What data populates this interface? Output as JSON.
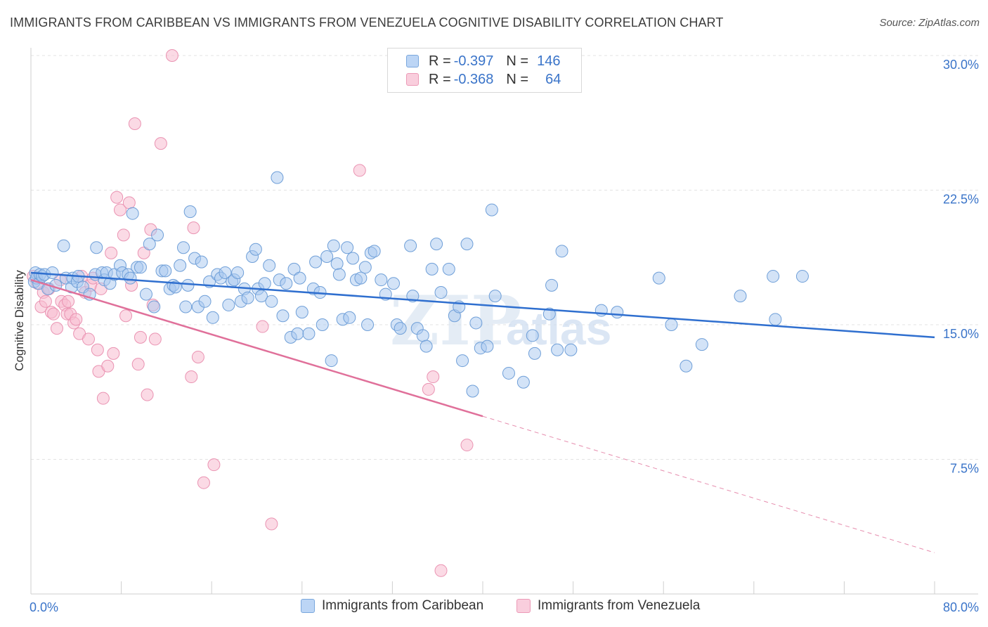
{
  "title": "IMMIGRANTS FROM CARIBBEAN VS IMMIGRANTS FROM VENEZUELA COGNITIVE DISABILITY CORRELATION CHART",
  "source": "Source: ZipAtlas.com",
  "watermark": {
    "zip": "ZIP",
    "atlas": "atlas"
  },
  "legend": [
    {
      "r_label": "R =",
      "r_value": "-0.397",
      "n_label": "N =",
      "n_value": "146"
    },
    {
      "r_label": "R =",
      "r_value": "-0.368",
      "n_label": "N =",
      "n_value": "64"
    }
  ],
  "bottom_legend": [
    {
      "label": "Immigrants from Caribbean"
    },
    {
      "label": "Immigrants from Venezuela"
    }
  ],
  "chart_data": {
    "type": "scatter",
    "title": "IMMIGRANTS FROM CARIBBEAN VS IMMIGRANTS FROM VENEZUELA COGNITIVE DISABILITY CORRELATION CHART",
    "xlabel": "",
    "ylabel": "Cognitive Disability",
    "xlim": [
      0,
      80
    ],
    "ylim": [
      0,
      30
    ],
    "x_tick_labels": [
      "0.0%",
      "80.0%"
    ],
    "y_ticks": [
      7.5,
      15.0,
      22.5,
      30.0
    ],
    "y_tick_labels": [
      "7.5%",
      "15.0%",
      "22.5%",
      "30.0%"
    ],
    "grid": true,
    "colors": {
      "caribbean_fill": "#a8c8f0",
      "caribbean_edge": "#6f9fd8",
      "caribbean_line": "#2f6fcf",
      "venezuela_fill": "#f7bcd0",
      "venezuela_edge": "#ea93b2",
      "venezuela_line": "#e0709a",
      "tick_label": "#3a74c9",
      "grid": "#e3e3e3"
    },
    "series": [
      {
        "name": "Immigrants from Caribbean",
        "trend": {
          "x": [
            0,
            80
          ],
          "y": [
            17.9,
            14.3
          ]
        },
        "points": [
          [
            0.3,
            17.4
          ],
          [
            0.4,
            17.9
          ],
          [
            0.5,
            17.6
          ],
          [
            0.7,
            17.3
          ],
          [
            0.8,
            17.8
          ],
          [
            1.0,
            17.7
          ],
          [
            1.2,
            17.8
          ],
          [
            1.5,
            17.0
          ],
          [
            1.9,
            17.9
          ],
          [
            2.2,
            17.2
          ],
          [
            2.9,
            19.4
          ],
          [
            3.1,
            17.6
          ],
          [
            3.6,
            17.1
          ],
          [
            3.7,
            17.6
          ],
          [
            4.1,
            17.4
          ],
          [
            4.2,
            17.7
          ],
          [
            4.6,
            17.1
          ],
          [
            5.2,
            16.7
          ],
          [
            5.7,
            17.8
          ],
          [
            5.8,
            19.3
          ],
          [
            6.3,
            17.9
          ],
          [
            6.5,
            17.5
          ],
          [
            6.7,
            17.9
          ],
          [
            7.0,
            17.3
          ],
          [
            7.4,
            17.8
          ],
          [
            7.9,
            18.3
          ],
          [
            8.1,
            17.9
          ],
          [
            8.6,
            17.8
          ],
          [
            8.8,
            17.6
          ],
          [
            9.0,
            21.2
          ],
          [
            9.4,
            18.2
          ],
          [
            9.7,
            18.2
          ],
          [
            10.2,
            16.7
          ],
          [
            10.5,
            19.5
          ],
          [
            10.9,
            16.0
          ],
          [
            11.2,
            20.0
          ],
          [
            11.6,
            18.0
          ],
          [
            11.9,
            18.0
          ],
          [
            12.3,
            17.0
          ],
          [
            12.6,
            17.2
          ],
          [
            12.8,
            17.1
          ],
          [
            13.2,
            18.3
          ],
          [
            13.5,
            19.3
          ],
          [
            13.7,
            16.0
          ],
          [
            13.9,
            17.2
          ],
          [
            14.1,
            21.3
          ],
          [
            14.5,
            18.7
          ],
          [
            14.8,
            16.0
          ],
          [
            15.1,
            18.5
          ],
          [
            15.4,
            16.3
          ],
          [
            15.8,
            17.4
          ],
          [
            16.1,
            15.4
          ],
          [
            16.5,
            17.8
          ],
          [
            16.8,
            17.6
          ],
          [
            17.2,
            17.9
          ],
          [
            17.5,
            16.1
          ],
          [
            17.8,
            17.4
          ],
          [
            18.0,
            17.5
          ],
          [
            18.3,
            17.9
          ],
          [
            18.6,
            16.3
          ],
          [
            18.9,
            17.0
          ],
          [
            19.2,
            16.5
          ],
          [
            19.6,
            18.8
          ],
          [
            19.9,
            19.2
          ],
          [
            20.1,
            17.0
          ],
          [
            20.4,
            16.6
          ],
          [
            20.7,
            17.3
          ],
          [
            21.1,
            18.3
          ],
          [
            21.3,
            16.3
          ],
          [
            21.8,
            23.2
          ],
          [
            22.0,
            17.5
          ],
          [
            22.3,
            15.5
          ],
          [
            22.6,
            17.3
          ],
          [
            23.0,
            14.3
          ],
          [
            23.3,
            18.1
          ],
          [
            23.6,
            14.5
          ],
          [
            23.8,
            17.6
          ],
          [
            24.0,
            15.7
          ],
          [
            24.6,
            14.5
          ],
          [
            25.0,
            17.0
          ],
          [
            25.2,
            18.5
          ],
          [
            25.6,
            16.8
          ],
          [
            25.8,
            15.0
          ],
          [
            26.2,
            18.8
          ],
          [
            26.6,
            13.0
          ],
          [
            26.8,
            19.4
          ],
          [
            27.1,
            18.4
          ],
          [
            27.3,
            17.8
          ],
          [
            27.6,
            15.3
          ],
          [
            28.0,
            19.3
          ],
          [
            28.2,
            15.4
          ],
          [
            28.5,
            18.7
          ],
          [
            28.8,
            17.5
          ],
          [
            29.2,
            17.6
          ],
          [
            29.6,
            18.2
          ],
          [
            29.8,
            15.0
          ],
          [
            30.1,
            19.0
          ],
          [
            30.4,
            19.1
          ],
          [
            31.0,
            17.5
          ],
          [
            31.4,
            16.7
          ],
          [
            32.1,
            17.3
          ],
          [
            32.4,
            15.0
          ],
          [
            32.7,
            14.8
          ],
          [
            33.6,
            19.4
          ],
          [
            33.8,
            16.6
          ],
          [
            34.2,
            14.8
          ],
          [
            34.7,
            14.4
          ],
          [
            35.0,
            13.8
          ],
          [
            35.5,
            18.1
          ],
          [
            35.9,
            19.5
          ],
          [
            36.3,
            16.8
          ],
          [
            37.0,
            18.1
          ],
          [
            37.5,
            15.5
          ],
          [
            37.9,
            16.0
          ],
          [
            38.2,
            13.0
          ],
          [
            38.6,
            19.5
          ],
          [
            39.1,
            11.3
          ],
          [
            39.4,
            15.1
          ],
          [
            39.8,
            13.7
          ],
          [
            40.4,
            13.8
          ],
          [
            40.8,
            21.4
          ],
          [
            41.1,
            16.6
          ],
          [
            42.3,
            12.3
          ],
          [
            43.6,
            11.8
          ],
          [
            44.4,
            14.4
          ],
          [
            44.6,
            13.4
          ],
          [
            45.9,
            15.6
          ],
          [
            46.1,
            17.2
          ],
          [
            46.6,
            13.6
          ],
          [
            47.0,
            19.1
          ],
          [
            47.8,
            13.6
          ],
          [
            50.5,
            15.8
          ],
          [
            51.9,
            15.7
          ],
          [
            55.6,
            17.6
          ],
          [
            56.7,
            15.0
          ],
          [
            58.0,
            12.7
          ],
          [
            59.4,
            13.9
          ],
          [
            62.8,
            16.6
          ],
          [
            65.7,
            17.7
          ],
          [
            65.9,
            15.3
          ],
          [
            68.3,
            17.7
          ]
        ]
      },
      {
        "name": "Immigrants from Venezuela",
        "trend": {
          "x": [
            0,
            40
          ],
          "y": [
            17.5,
            9.9
          ]
        },
        "trend_dashed": {
          "x": [
            40,
            80
          ],
          "y": [
            9.9,
            2.3
          ]
        },
        "points": [
          [
            0.2,
            17.7
          ],
          [
            0.6,
            17.3
          ],
          [
            0.9,
            16.0
          ],
          [
            1.1,
            16.8
          ],
          [
            1.3,
            16.3
          ],
          [
            1.6,
            17.0
          ],
          [
            1.8,
            15.7
          ],
          [
            2.0,
            15.6
          ],
          [
            2.3,
            14.8
          ],
          [
            2.6,
            17.5
          ],
          [
            2.7,
            16.3
          ],
          [
            3.0,
            16.1
          ],
          [
            3.2,
            15.6
          ],
          [
            3.3,
            16.3
          ],
          [
            3.5,
            15.6
          ],
          [
            3.8,
            15.1
          ],
          [
            4.0,
            15.3
          ],
          [
            4.3,
            14.5
          ],
          [
            4.5,
            17.7
          ],
          [
            4.8,
            16.8
          ],
          [
            5.1,
            14.2
          ],
          [
            5.3,
            17.2
          ],
          [
            5.5,
            17.6
          ],
          [
            5.9,
            13.6
          ],
          [
            6.0,
            12.4
          ],
          [
            6.2,
            17.0
          ],
          [
            6.4,
            10.9
          ],
          [
            6.8,
            12.7
          ],
          [
            7.1,
            19.0
          ],
          [
            7.3,
            13.4
          ],
          [
            7.6,
            22.1
          ],
          [
            7.9,
            21.4
          ],
          [
            8.2,
            20.0
          ],
          [
            8.4,
            15.5
          ],
          [
            8.7,
            21.8
          ],
          [
            8.9,
            17.2
          ],
          [
            9.2,
            26.2
          ],
          [
            9.5,
            12.8
          ],
          [
            9.7,
            14.3
          ],
          [
            10.0,
            19.0
          ],
          [
            10.3,
            11.1
          ],
          [
            10.6,
            20.3
          ],
          [
            10.8,
            16.1
          ],
          [
            11.0,
            14.2
          ],
          [
            11.5,
            25.1
          ],
          [
            12.5,
            30.0
          ],
          [
            14.2,
            12.1
          ],
          [
            14.4,
            20.4
          ],
          [
            14.8,
            13.2
          ],
          [
            15.3,
            6.2
          ],
          [
            16.2,
            7.2
          ],
          [
            20.5,
            14.9
          ],
          [
            21.3,
            3.9
          ],
          [
            29.1,
            23.6
          ],
          [
            35.2,
            11.4
          ],
          [
            35.6,
            12.1
          ],
          [
            36.3,
            1.3
          ],
          [
            38.6,
            8.3
          ]
        ]
      }
    ]
  }
}
